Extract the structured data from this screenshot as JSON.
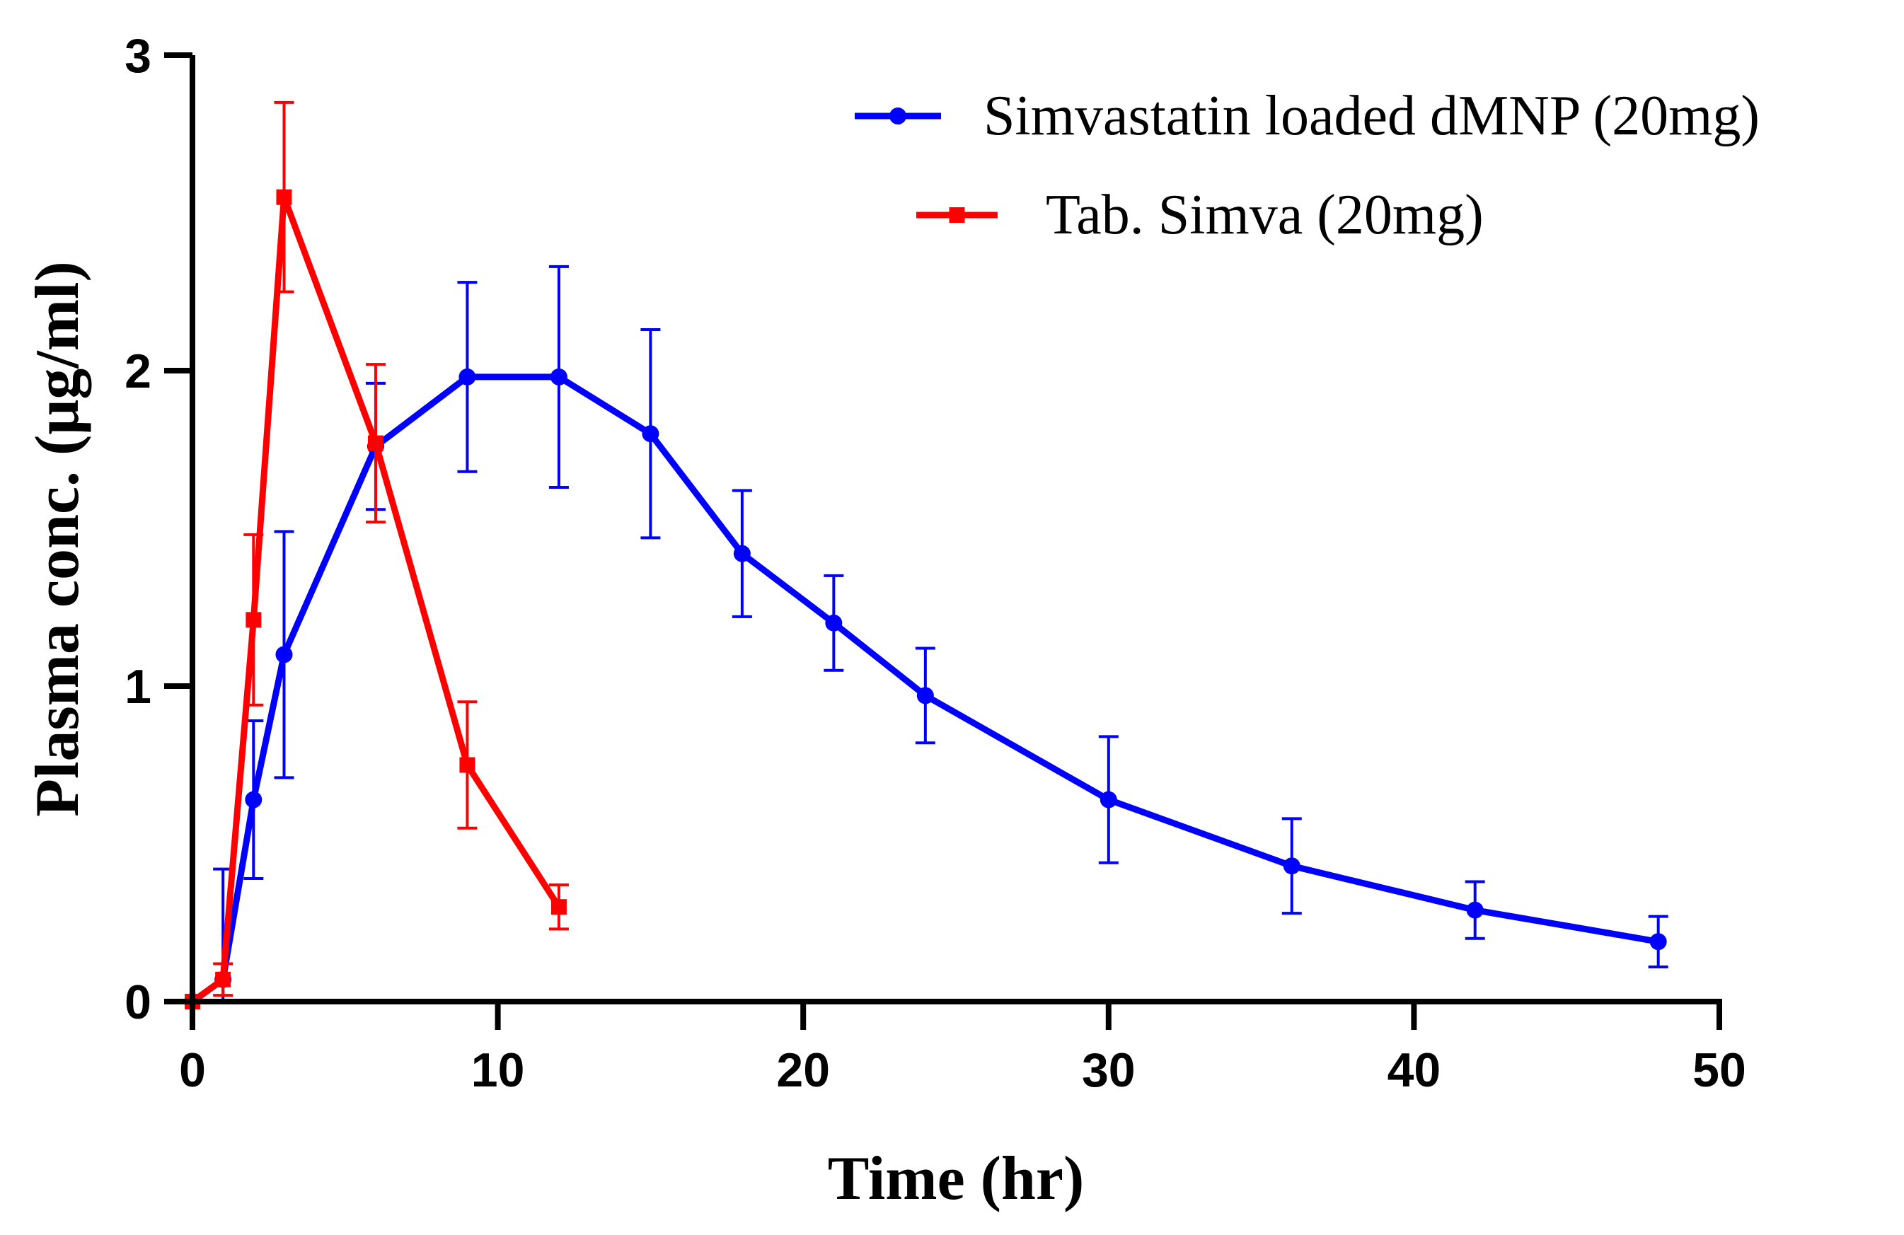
{
  "chart_data": {
    "type": "line",
    "title": "",
    "xlabel": "Time (hr)",
    "ylabel": "Plasma conc. (μg/ml)",
    "xlim": [
      0,
      50
    ],
    "ylim": [
      0,
      3
    ],
    "xticks": [
      0,
      10,
      20,
      30,
      40,
      50
    ],
    "yticks": [
      0,
      1,
      2,
      3
    ],
    "grid": false,
    "legend_position": "top-right",
    "series": [
      {
        "name": "Simvastatin loaded dMNP (20mg)",
        "color": "#0000ff",
        "marker": "circle",
        "x": [
          0,
          1,
          2,
          3,
          6,
          9,
          12,
          15,
          18,
          21,
          24,
          30,
          36,
          42,
          48
        ],
        "y": [
          0,
          0.07,
          0.64,
          1.1,
          1.76,
          1.98,
          1.98,
          1.8,
          1.42,
          1.2,
          0.97,
          0.64,
          0.43,
          0.29,
          0.19
        ],
        "err": [
          0,
          0.35,
          0.25,
          0.39,
          0.2,
          0.3,
          0.35,
          0.33,
          0.2,
          0.15,
          0.15,
          0.2,
          0.15,
          0.09,
          0.08
        ]
      },
      {
        "name": "Tab. Simva (20mg)",
        "color": "#ff0000",
        "marker": "square",
        "x": [
          0,
          1,
          2,
          3,
          6,
          9,
          12
        ],
        "y": [
          0,
          0.07,
          1.21,
          2.55,
          1.77,
          0.75,
          0.3
        ],
        "err": [
          0,
          0.05,
          0.27,
          0.3,
          0.25,
          0.2,
          0.07
        ]
      }
    ]
  }
}
